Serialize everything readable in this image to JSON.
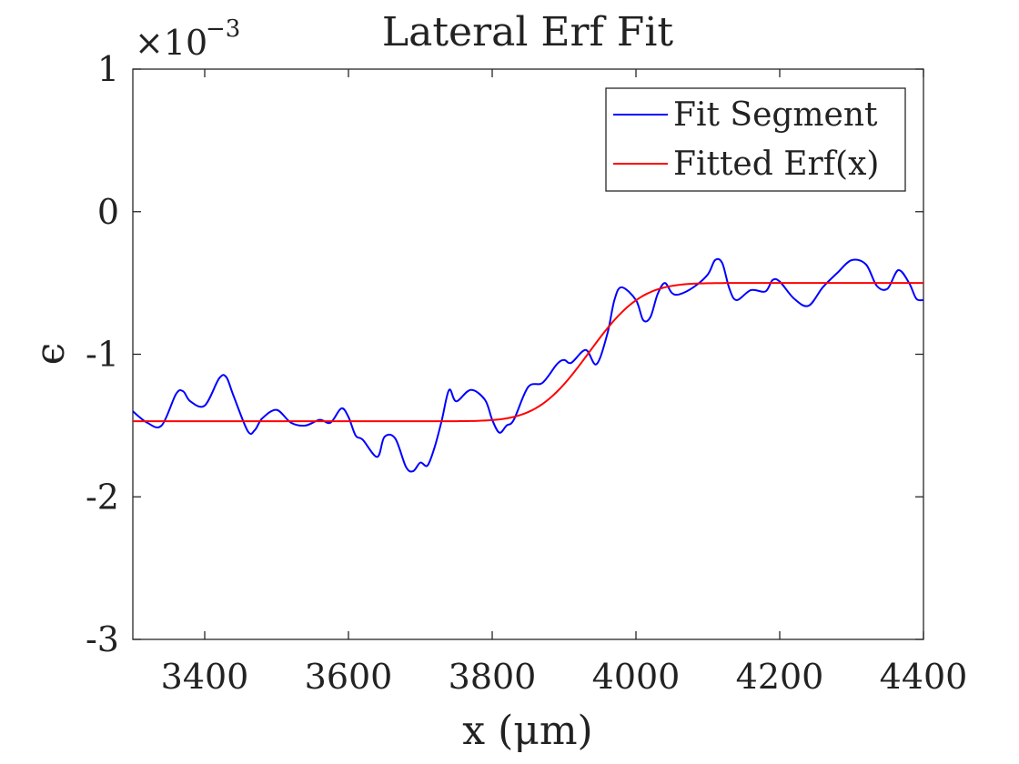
{
  "chart_data": {
    "type": "line",
    "title": "Lateral Erf Fit",
    "xlabel": "x (μm)",
    "ylabel": "ϵ",
    "exponent_base": "×10",
    "exponent_power": "−3",
    "xlim": [
      3300,
      4400
    ],
    "ylim": [
      -3,
      1
    ],
    "xticks": [
      3400,
      3600,
      3800,
      4000,
      4200,
      4400
    ],
    "xtick_labels": [
      "3400",
      "3600",
      "3800",
      "4000",
      "4200",
      "4400"
    ],
    "yticks": [
      1,
      0,
      -1,
      -2,
      -3
    ],
    "ytick_labels": [
      "1",
      "0",
      "-1",
      "-2",
      "-3"
    ],
    "grid": false,
    "legend_position": "top-right",
    "series": [
      {
        "name": "Fit Segment",
        "color": "#0000ff",
        "x": [
          3300,
          3320,
          3340,
          3360,
          3370,
          3380,
          3400,
          3420,
          3430,
          3440,
          3460,
          3470,
          3480,
          3500,
          3520,
          3540,
          3560,
          3575,
          3590,
          3600,
          3610,
          3620,
          3640,
          3650,
          3665,
          3680,
          3690,
          3700,
          3710,
          3720,
          3730,
          3740,
          3750,
          3770,
          3790,
          3800,
          3810,
          3820,
          3830,
          3850,
          3870,
          3890,
          3900,
          3910,
          3930,
          3945,
          3960,
          3970,
          3980,
          4000,
          4010,
          4020,
          4030,
          4040,
          4050,
          4060,
          4080,
          4100,
          4110,
          4120,
          4130,
          4140,
          4160,
          4180,
          4190,
          4200,
          4220,
          4240,
          4260,
          4280,
          4300,
          4320,
          4335,
          4350,
          4365,
          4380,
          4390,
          4400
        ],
        "y": [
          -1.4,
          -1.48,
          -1.5,
          -1.28,
          -1.26,
          -1.33,
          -1.36,
          -1.17,
          -1.16,
          -1.29,
          -1.54,
          -1.53,
          -1.45,
          -1.39,
          -1.48,
          -1.5,
          -1.46,
          -1.48,
          -1.38,
          -1.44,
          -1.57,
          -1.6,
          -1.72,
          -1.58,
          -1.59,
          -1.79,
          -1.82,
          -1.76,
          -1.78,
          -1.65,
          -1.46,
          -1.25,
          -1.33,
          -1.25,
          -1.32,
          -1.46,
          -1.55,
          -1.5,
          -1.46,
          -1.23,
          -1.2,
          -1.07,
          -1.04,
          -1.06,
          -0.97,
          -1.07,
          -0.86,
          -0.62,
          -0.53,
          -0.62,
          -0.76,
          -0.74,
          -0.58,
          -0.5,
          -0.57,
          -0.58,
          -0.53,
          -0.44,
          -0.34,
          -0.36,
          -0.54,
          -0.62,
          -0.55,
          -0.56,
          -0.48,
          -0.49,
          -0.61,
          -0.66,
          -0.53,
          -0.43,
          -0.34,
          -0.37,
          -0.52,
          -0.54,
          -0.41,
          -0.5,
          -0.61,
          -0.62
        ]
      },
      {
        "name": "Fitted Erf(x)",
        "color": "#ff0000",
        "function": "erf",
        "low": -1.47,
        "high": -0.5,
        "center": 3935,
        "width": 80
      }
    ]
  }
}
